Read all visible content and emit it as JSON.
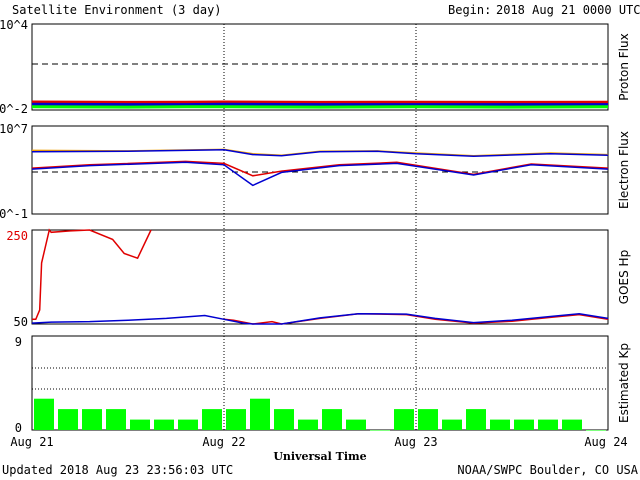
{
  "header": {
    "title": "Satellite Environment (3 day)",
    "begin_label": "Begin:",
    "begin_value": "2018 Aug 21 0000 UTC"
  },
  "footer": {
    "updated": "Updated 2018 Aug 23 23:56:03 UTC",
    "credit": "NOAA/SWPC Boulder, CO USA",
    "xlabel": "Universal Time"
  },
  "x_ticks": [
    "Aug 21",
    "Aug 22",
    "Aug 23",
    "Aug 24"
  ],
  "colors": {
    "red": "#e00000",
    "blue": "#0000d0",
    "green": "#00ff00",
    "orange": "#f0a000",
    "line": "#0000b0"
  },
  "chart_data": [
    {
      "type": "line",
      "ylabel": "Proton Flux",
      "yscale": "log",
      "ylim": [
        0.01,
        10000
      ],
      "tick_labels": [
        "10^4",
        "10^-2"
      ],
      "threshold": 10,
      "x_unit": "days since Aug 21 0000 UTC",
      "series": [
        {
          "color": "red",
          "x": [
            0,
            0.5,
            0.8,
            1.0,
            1.5,
            2.0,
            2.5,
            3.0
          ],
          "values": [
            0.036,
            0.034,
            0.035,
            0.036,
            0.034,
            0.035,
            0.034,
            0.035
          ]
        },
        {
          "color": "blue",
          "x": [
            0,
            0.5,
            0.8,
            1.0,
            1.5,
            2.0,
            2.5,
            3.0
          ],
          "values": [
            0.025,
            0.024,
            0.024,
            0.025,
            0.024,
            0.024,
            0.024,
            0.024
          ]
        },
        {
          "color": "green",
          "x": [
            0,
            0.5,
            0.8,
            1.0,
            1.5,
            2.0,
            2.5,
            3.0
          ],
          "values": [
            0.017,
            0.016,
            0.017,
            0.017,
            0.016,
            0.017,
            0.016,
            0.017
          ]
        }
      ]
    },
    {
      "type": "line",
      "ylabel": "Electron Flux",
      "yscale": "log",
      "ylim": [
        0.1,
        10000000
      ],
      "tick_labels": [
        "10^7",
        "10^-1"
      ],
      "threshold": 1000,
      "series": [
        {
          "color": "orange",
          "x": [
            0,
            0.5,
            1.0,
            1.15,
            1.3,
            1.5,
            1.8,
            2.0,
            2.3,
            2.7,
            3.0
          ],
          "values": [
            60000,
            55000,
            75000,
            30000,
            22000,
            50000,
            55000,
            35000,
            20000,
            35000,
            25000
          ]
        },
        {
          "color": "blue",
          "x": [
            0,
            0.5,
            1.0,
            1.15,
            1.3,
            1.5,
            1.8,
            2.0,
            2.3,
            2.7,
            3.0
          ],
          "values": [
            45000,
            50000,
            70000,
            25000,
            20000,
            45000,
            50000,
            30000,
            18000,
            30000,
            22000
          ]
        },
        {
          "color": "red",
          "x": [
            0,
            0.3,
            0.8,
            1.0,
            1.15,
            1.3,
            1.6,
            1.9,
            2.3,
            2.6,
            3.0
          ],
          "values": [
            1500,
            3000,
            6000,
            4000,
            300,
            800,
            3000,
            5000,
            400,
            3500,
            1500
          ]
        },
        {
          "color": "blue",
          "x": [
            0,
            0.3,
            0.8,
            1.0,
            1.15,
            1.3,
            1.6,
            1.9,
            2.3,
            2.6,
            3.0
          ],
          "values": [
            1200,
            2500,
            5000,
            3000,
            40,
            600,
            2500,
            4000,
            350,
            3000,
            1200
          ]
        }
      ]
    },
    {
      "type": "line",
      "ylabel": "GOES Hp",
      "ylim": [
        50,
        250
      ],
      "tick_labels": [
        "250",
        "50"
      ],
      "series": [
        {
          "color": "red",
          "x": [
            0,
            0.02,
            0.04,
            0.05,
            0.09,
            0.1,
            0.2,
            0.3,
            0.42,
            0.48,
            0.55,
            0.62
          ],
          "values": [
            60,
            60,
            80,
            180,
            250,
            245,
            248,
            252,
            230,
            200,
            190,
            250
          ]
        },
        {
          "color": "red",
          "x": [
            1.0,
            1.05,
            1.15,
            1.25,
            1.3,
            1.5,
            1.7,
            1.95,
            2.1,
            2.3,
            2.5,
            2.7,
            2.85,
            3.0
          ],
          "values": [
            60,
            58,
            50,
            55,
            48,
            62,
            72,
            70,
            60,
            52,
            56,
            64,
            70,
            60
          ]
        },
        {
          "color": "blue",
          "x": [
            0,
            0.1,
            0.3,
            0.5,
            0.7,
            0.9,
            1.0,
            1.1,
            1.15,
            1.3,
            1.5,
            1.7,
            1.95,
            2.1,
            2.3,
            2.5,
            2.7,
            2.85,
            3.0
          ],
          "values": [
            52,
            54,
            55,
            58,
            62,
            68,
            60,
            52,
            45,
            50,
            63,
            72,
            71,
            62,
            53,
            58,
            66,
            72,
            62
          ]
        }
      ]
    },
    {
      "type": "bar",
      "ylabel": "Estimated Kp",
      "ylim": [
        0,
        9
      ],
      "tick_labels": [
        "9",
        "0"
      ],
      "categories_per_day": 8,
      "values": [
        3,
        2,
        2,
        2,
        1,
        1,
        1,
        2,
        2,
        3,
        2,
        1,
        2,
        1,
        0,
        2,
        2,
        1,
        2,
        1,
        1,
        1,
        1,
        0
      ]
    }
  ]
}
